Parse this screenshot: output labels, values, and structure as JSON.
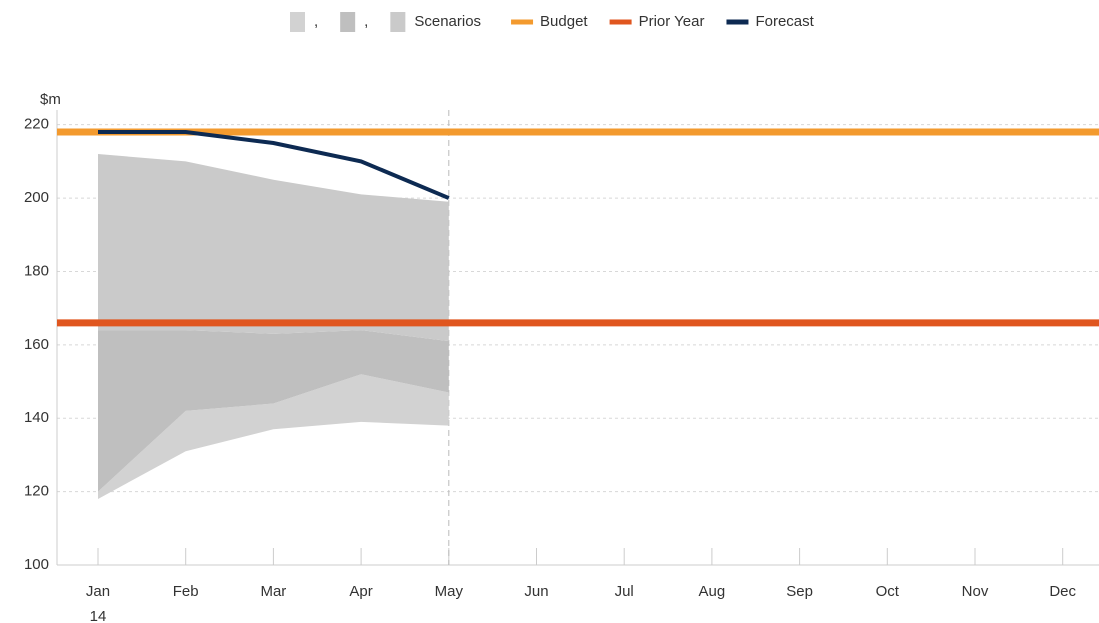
{
  "chart_data": {
    "type": "line",
    "y_axis_label": "$m",
    "categories": [
      "Jan",
      "Feb",
      "Mar",
      "Apr",
      "May",
      "Jun",
      "Jul",
      "Aug",
      "Sep",
      "Oct",
      "Nov",
      "Dec"
    ],
    "year_label": "14",
    "divider": "May",
    "ylim": [
      100,
      224
    ],
    "yticks": [
      100,
      120,
      140,
      160,
      180,
      200,
      220
    ],
    "grid": true,
    "legend": "top",
    "bands": [
      {
        "name": ",",
        "color": "#d2d2d2",
        "low": [
          118,
          131,
          137,
          139,
          138,
          null,
          null,
          null,
          null,
          null,
          null,
          null
        ],
        "high": [
          120,
          142,
          144,
          152,
          147,
          null,
          null,
          null,
          null,
          null,
          null,
          null
        ]
      },
      {
        "name": ",",
        "color": "#bfbfbf",
        "low": [
          120,
          142,
          144,
          152,
          147,
          null,
          null,
          null,
          null,
          null,
          null,
          null
        ],
        "high": [
          164,
          164,
          163,
          164,
          161,
          null,
          null,
          null,
          null,
          null,
          null,
          null
        ]
      },
      {
        "name": "Scenarios",
        "color": "#cacaca",
        "low": [
          164,
          164,
          163,
          164,
          161,
          null,
          null,
          null,
          null,
          null,
          null,
          null
        ],
        "high": [
          212,
          210,
          205,
          201,
          199,
          null,
          null,
          null,
          null,
          null,
          null,
          null
        ]
      }
    ],
    "series": [
      {
        "name": "Budget",
        "color": "#f39a2e",
        "values": [
          218,
          218,
          218,
          218,
          218,
          218,
          218,
          218,
          218,
          218,
          218,
          218
        ]
      },
      {
        "name": "Prior Year",
        "color": "#e0561f",
        "values": [
          166,
          166,
          166,
          166,
          166,
          166,
          166,
          166,
          166,
          166,
          166,
          166
        ]
      },
      {
        "name": "Forecast",
        "color": "#0d2a52",
        "values": [
          218,
          218,
          215,
          210,
          200,
          null,
          null,
          null,
          null,
          null,
          null,
          null
        ]
      }
    ]
  }
}
